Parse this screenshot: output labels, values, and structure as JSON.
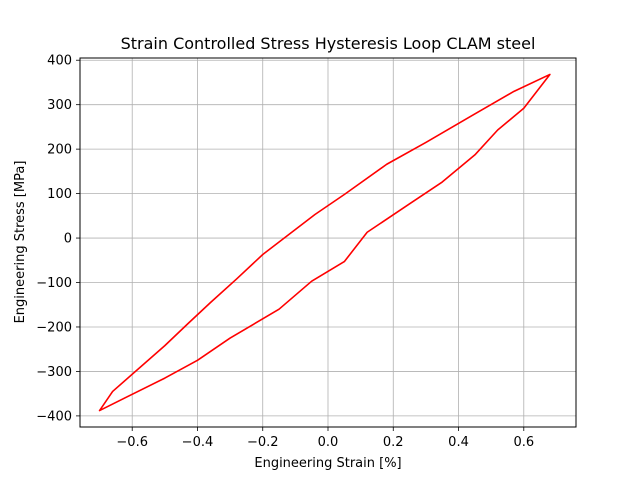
{
  "chart_data": {
    "type": "line",
    "title": "Strain Controlled Stress Hysteresis Loop CLAM steel",
    "xlabel": "Engineering Strain  [%]",
    "ylabel": "Engineering Stress [MPa]",
    "xlim": [
      -0.76,
      0.76
    ],
    "ylim": [
      -425,
      405
    ],
    "grid": true,
    "x_ticks": [
      -0.6,
      -0.4,
      -0.2,
      0.0,
      0.2,
      0.4,
      0.6
    ],
    "x_tick_labels": [
      "−0.6",
      "−0.4",
      "−0.2",
      "0.0",
      "0.2",
      "0.4",
      "0.6"
    ],
    "y_ticks": [
      -400,
      -300,
      -200,
      -100,
      0,
      100,
      200,
      300,
      400
    ],
    "y_tick_labels": [
      "−400",
      "−300",
      "−200",
      "−100",
      "0",
      "100",
      "200",
      "300",
      "400"
    ],
    "series": [
      {
        "color": "#ff0000",
        "x": [
          -0.7,
          -0.66,
          -0.5,
          -0.43,
          -0.36,
          -0.28,
          -0.2,
          -0.04,
          0.05,
          0.18,
          0.3,
          0.44,
          0.57,
          0.68,
          0.6,
          0.52,
          0.45,
          0.35,
          0.25,
          0.12,
          0.05,
          -0.05,
          -0.15,
          -0.3,
          -0.4,
          -0.5,
          -0.7
        ],
        "y": [
          -388,
          -345,
          -242,
          -193,
          -145,
          -92,
          -37,
          53,
          98,
          166,
          215,
          275,
          330,
          368,
          292,
          243,
          187,
          126,
          77,
          13,
          -53,
          -97,
          -160,
          -225,
          -275,
          -315,
          -388
        ]
      }
    ]
  }
}
